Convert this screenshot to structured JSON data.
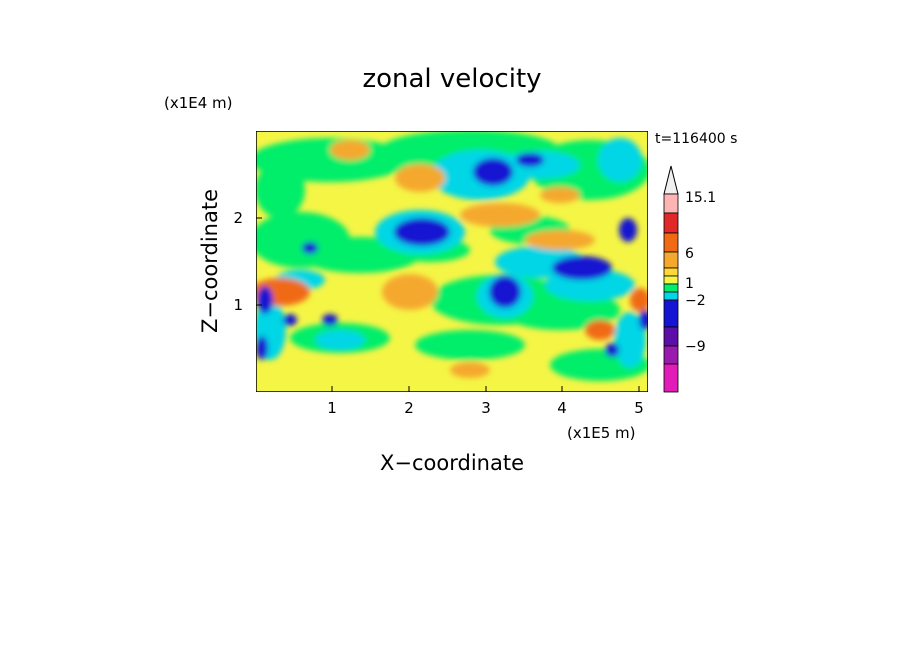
{
  "chart_data": {
    "type": "heatmap",
    "title": "zonal velocity",
    "xlabel": "X−coordinate",
    "ylabel": "Z−coordinate",
    "x_unit": "(x1E5 m)",
    "y_unit": "(x1E4 m)",
    "time_label": "t=116400 s",
    "x_ticks": [
      "1",
      "2",
      "3",
      "4",
      "5"
    ],
    "y_ticks": [
      "1",
      "2"
    ],
    "xlim": [
      0,
      5.12
    ],
    "ylim": [
      0,
      2.98
    ],
    "colorbar": {
      "labels": [
        "15.1",
        "6",
        "1",
        "−2",
        "−9"
      ],
      "colors": [
        "#f0f0f0",
        "#ffb4b4",
        "#e02828",
        "#f06a14",
        "#f5a82e",
        "#ffd836",
        "#f5f546",
        "#00ee6a",
        "#00d6e6",
        "#1414d2",
        "#5c0fa6",
        "#9a1ab0",
        "#e21cb8"
      ]
    }
  }
}
